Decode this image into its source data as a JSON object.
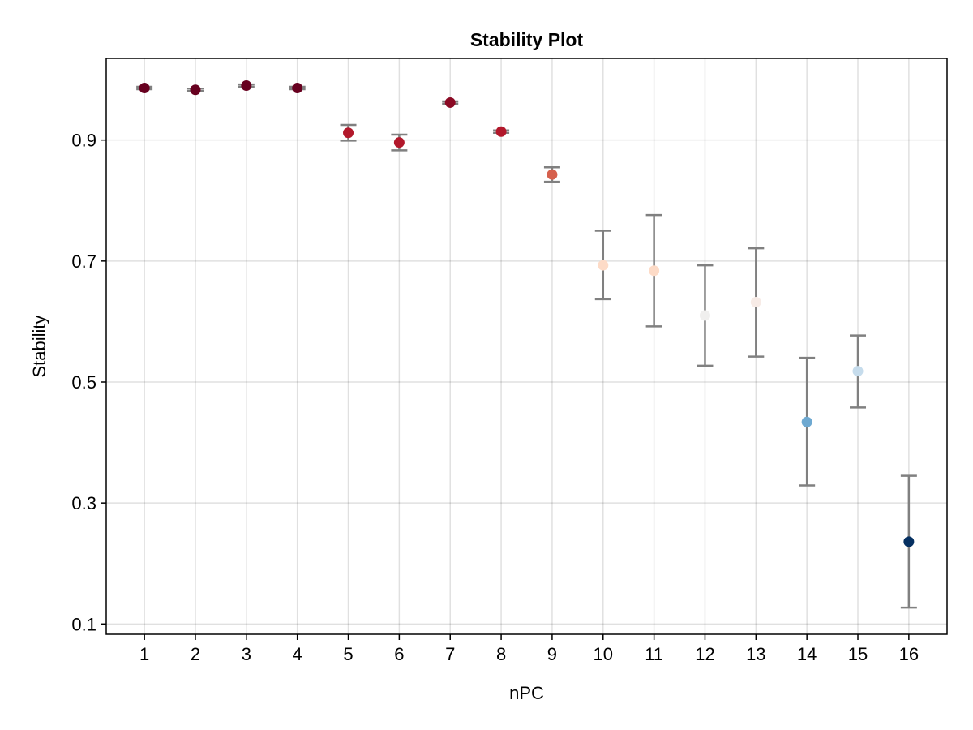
{
  "chart_data": {
    "type": "scatter",
    "title": "Stability Plot",
    "xlabel": "nPC",
    "ylabel": "Stability",
    "x": [
      1,
      2,
      3,
      4,
      5,
      6,
      7,
      8,
      9,
      10,
      11,
      12,
      13,
      14,
      15,
      16
    ],
    "xticks": [
      "1",
      "2",
      "3",
      "4",
      "5",
      "6",
      "7",
      "8",
      "9",
      "10",
      "11",
      "12",
      "13",
      "14",
      "15",
      "16"
    ],
    "xlim": [
      0.25,
      16.75
    ],
    "yticks": [
      0.1,
      0.3,
      0.5,
      0.7,
      0.9
    ],
    "ytick_labels": [
      "0.1",
      "0.3",
      "0.5",
      "0.7",
      "0.9"
    ],
    "ylim": [
      0.083,
      1.035
    ],
    "grid": true,
    "series": [
      {
        "values": [
          0.986,
          0.983,
          0.99,
          0.986,
          0.912,
          0.896,
          0.962,
          0.914,
          0.843,
          0.693,
          0.684,
          0.61,
          0.632,
          0.434,
          0.518,
          0.236
        ],
        "error_low": [
          0.984,
          0.981,
          0.988,
          0.984,
          0.899,
          0.883,
          0.96,
          0.912,
          0.831,
          0.637,
          0.592,
          0.527,
          0.542,
          0.329,
          0.458,
          0.127
        ],
        "error_high": [
          0.988,
          0.985,
          0.992,
          0.988,
          0.925,
          0.909,
          0.964,
          0.916,
          0.855,
          0.75,
          0.776,
          0.693,
          0.721,
          0.54,
          0.577,
          0.345
        ],
        "point_colors": [
          "#67001f",
          "#67001f",
          "#67001f",
          "#67001f",
          "#b2182b",
          "#b2182b",
          "#8b0a24",
          "#b2182b",
          "#d6604d",
          "#fddbc7",
          "#fddbc7",
          "#f0efee",
          "#f7ebe6",
          "#6ea9d1",
          "#c6dcec",
          "#053061"
        ],
        "error_bar_color": "#808080"
      }
    ]
  }
}
